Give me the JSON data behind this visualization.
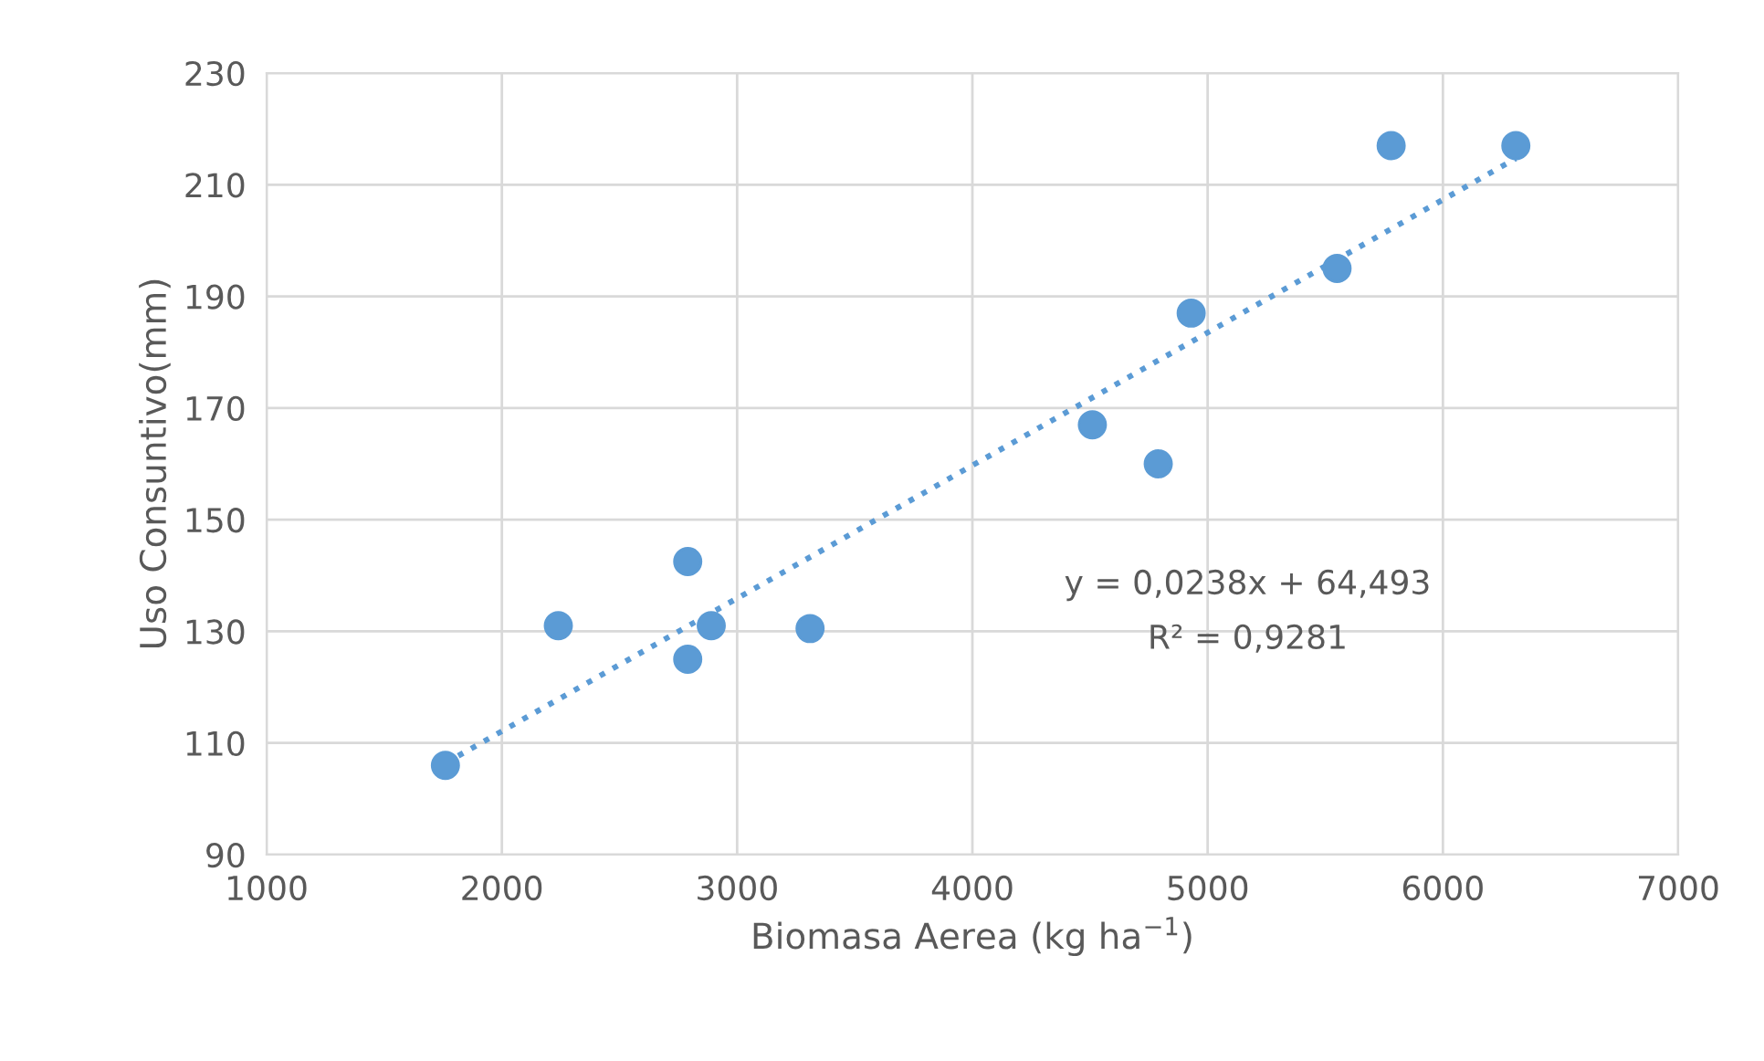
{
  "chart_data": {
    "type": "scatter",
    "xlabel": "Biomasa Aerea (kg ha$^{−1}$)",
    "ylabel": "Uso Consuntivo(mm)",
    "series": [
      {
        "color": "#5b9bd5",
        "marker": "circle",
        "x": [
          1760,
          2240,
          2790,
          2790,
          2890,
          3310,
          4510,
          4790,
          4930,
          5550,
          5780,
          6310
        ],
        "values": [
          106,
          131,
          142.5,
          125,
          131,
          130.5,
          167,
          160,
          187,
          195,
          217,
          217
        ]
      },
      {
        "type": "line",
        "color": "#5b9bd5",
        "line_style": "dotted",
        "marker": "none",
        "x": [
          1760,
          6310
        ],
        "values": [
          106.4,
          214.7
        ]
      }
    ],
    "annotations": [
      "y = 0,0238x + 64,493",
      "R² = 0,9281"
    ],
    "xlim": [
      1000,
      7000
    ],
    "xticks": [
      1000,
      2000,
      3000,
      4000,
      5000,
      6000,
      7000
    ],
    "ylim": [
      90,
      230
    ],
    "yticks": [
      90,
      110,
      130,
      150,
      170,
      190,
      210,
      230
    ],
    "grid": true
  }
}
